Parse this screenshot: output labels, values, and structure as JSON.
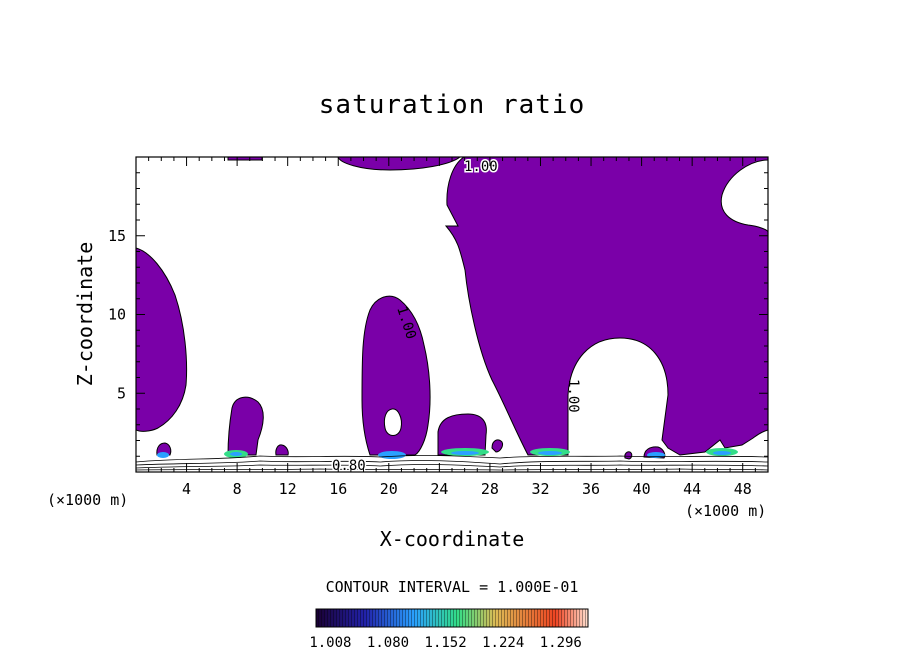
{
  "chart_data": {
    "type": "contour",
    "title": "saturation ratio",
    "xlabel": "X-coordinate",
    "ylabel": "Z-coordinate",
    "x_unit_label": "(×1000 m)",
    "x_unit_label_right": "(×1000 m)",
    "xlim": [
      0,
      50
    ],
    "ylim": [
      0,
      20
    ],
    "x_ticks": [
      4,
      8,
      12,
      16,
      20,
      24,
      28,
      32,
      36,
      40,
      44,
      48
    ],
    "x_tick_labels": [
      "4",
      "8",
      "12",
      "16",
      "20",
      "24",
      "28",
      "32",
      "36",
      "40",
      "44",
      "48"
    ],
    "y_ticks": [
      5,
      10,
      15
    ],
    "y_tick_labels": [
      "5",
      "10",
      "15"
    ],
    "contour_interval_text": "CONTOUR INTERVAL = 1.000E-01",
    "contour_labels": [
      "1.00",
      "1.00",
      "1.00",
      "0.80"
    ],
    "fill_color": "#7a00a8",
    "colorbar": {
      "tick_labels": [
        "1.008",
        "1.080",
        "1.152",
        "1.224",
        "1.296"
      ],
      "values": [
        1.008,
        1.08,
        1.152,
        1.224,
        1.296
      ],
      "range": [
        0.99,
        1.33
      ],
      "colors": [
        "#1a0033",
        "#2222aa",
        "#2aa0ff",
        "#33dd88",
        "#99dd44",
        "#ddbb55",
        "#ee4422",
        "#ffffff"
      ]
    }
  }
}
